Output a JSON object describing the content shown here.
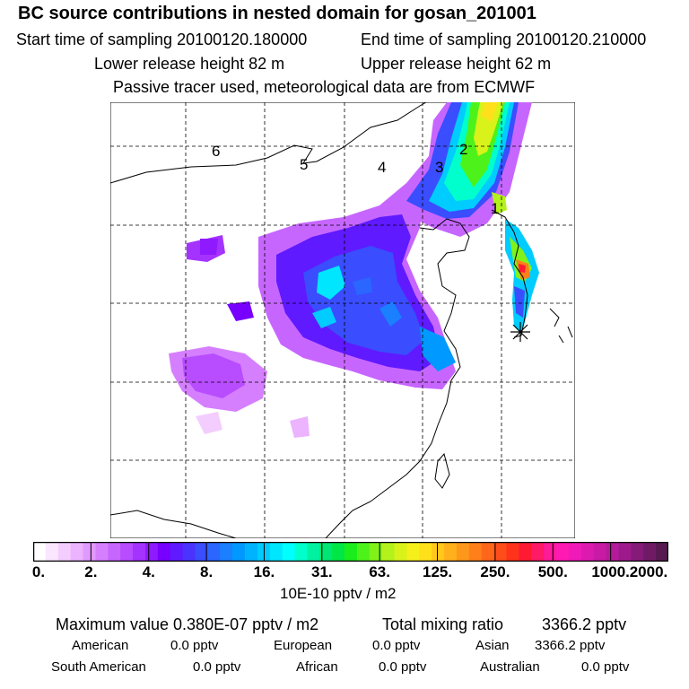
{
  "header": {
    "title": "BC  source contributions in nested domain for gosan_201001",
    "start_time": "Start time of sampling 20100120.180000",
    "end_time": "End time of sampling 20100120.210000",
    "lower_height": "Lower release height   82 m",
    "upper_height": "Upper release height   62 m",
    "tracer_note": "Passive tracer used, meteorological data are from ECMWF"
  },
  "map": {
    "region_labels": [
      "1",
      "2",
      "3",
      "4",
      "5",
      "6"
    ],
    "receptor_marker": "star-icon",
    "gridlines": "dashed"
  },
  "colorbar": {
    "colors": [
      "#ffffff",
      "#fbe6ff",
      "#f4cdff",
      "#ecb3ff",
      "#e199ff",
      "#d57fff",
      "#c766ff",
      "#b84cff",
      "#a533ff",
      "#8f1aff",
      "#7700ff",
      "#5f1aff",
      "#4a33ff",
      "#3a4dff",
      "#2a66ff",
      "#1a80ff",
      "#0099ff",
      "#00b3ff",
      "#00ccff",
      "#00e6ff",
      "#00ffff",
      "#00ffcc",
      "#00f2a0",
      "#00e673",
      "#00e645",
      "#1aee1a",
      "#4df21a",
      "#80f21a",
      "#b3f21a",
      "#d9f21a",
      "#f5f01a",
      "#ffe01a",
      "#ffc81a",
      "#ffb01a",
      "#ff981a",
      "#ff801a",
      "#ff661a",
      "#ff4d1a",
      "#ff331a",
      "#ff1a33",
      "#ff1a66",
      "#ff1a99",
      "#ff1ab3",
      "#f01ab8",
      "#dc1ab0",
      "#c81aa5",
      "#b41a9a",
      "#9e1a8c",
      "#861a78",
      "#6e1a64",
      "#561a50"
    ],
    "tick_labels": [
      "0.",
      "2.",
      "4.",
      "8.",
      "16.",
      "31.",
      "63.",
      "125.",
      "250.",
      "500.",
      "1000.",
      "2000."
    ],
    "unit": "10E-10 pptv / m2"
  },
  "summary": {
    "max_value": "Maximum value  0.380E-07 pptv / m2",
    "total_label": "Total mixing ratio",
    "total_value": "3366.2 pptv",
    "american_label": "American",
    "american_value": "0.0 pptv",
    "european_label": "European",
    "european_value": "0.0 pptv",
    "asian_label": "Asian",
    "asian_value": "3366.2 pptv",
    "south_american_label": "South American",
    "south_american_value": "0.0 pptv",
    "african_label": "African",
    "african_value": "0.0 pptv",
    "australian_label": "Australian",
    "australian_value": "0.0 pptv"
  }
}
